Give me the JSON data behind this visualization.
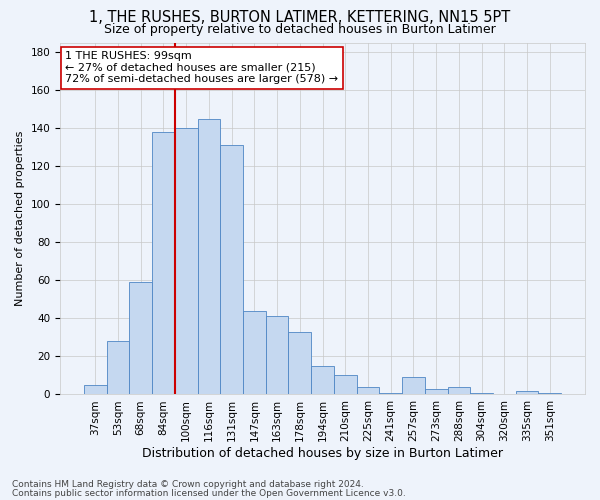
{
  "title": "1, THE RUSHES, BURTON LATIMER, KETTERING, NN15 5PT",
  "subtitle": "Size of property relative to detached houses in Burton Latimer",
  "xlabel": "Distribution of detached houses by size in Burton Latimer",
  "ylabel": "Number of detached properties",
  "categories": [
    "37sqm",
    "53sqm",
    "68sqm",
    "84sqm",
    "100sqm",
    "116sqm",
    "131sqm",
    "147sqm",
    "163sqm",
    "178sqm",
    "194sqm",
    "210sqm",
    "225sqm",
    "241sqm",
    "257sqm",
    "273sqm",
    "288sqm",
    "304sqm",
    "320sqm",
    "335sqm",
    "351sqm"
  ],
  "values": [
    5,
    28,
    59,
    138,
    140,
    145,
    131,
    44,
    41,
    33,
    15,
    10,
    4,
    1,
    9,
    3,
    4,
    1,
    0,
    2,
    1
  ],
  "bar_color": "#C5D8F0",
  "bar_edge_color": "#4E86C4",
  "highlight_bar_index": 4,
  "highlight_line_color": "#CC0000",
  "annotation_line1": "1 THE RUSHES: 99sqm",
  "annotation_line2": "← 27% of detached houses are smaller (215)",
  "annotation_line3": "72% of semi-detached houses are larger (578) →",
  "annotation_box_edge_color": "#CC0000",
  "footnote1": "Contains HM Land Registry data © Crown copyright and database right 2024.",
  "footnote2": "Contains public sector information licensed under the Open Government Licence v3.0.",
  "ylim": [
    0,
    185
  ],
  "yticks": [
    0,
    20,
    40,
    60,
    80,
    100,
    120,
    140,
    160,
    180
  ],
  "background_color": "#EEF3FB",
  "grid_color": "#C8C8C8",
  "title_fontsize": 10.5,
  "subtitle_fontsize": 9,
  "xlabel_fontsize": 9,
  "ylabel_fontsize": 8,
  "tick_fontsize": 7.5,
  "annotation_fontsize": 8,
  "footnote_fontsize": 6.5
}
